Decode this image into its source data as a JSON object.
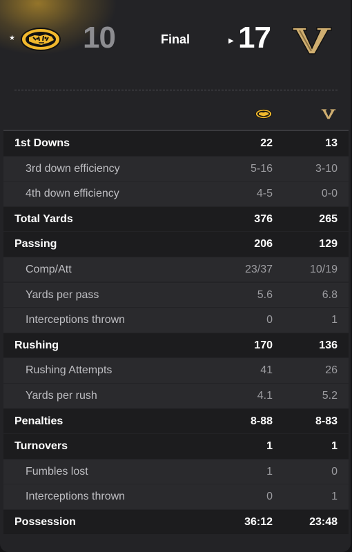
{
  "game": {
    "away_score": "10",
    "status": "Final",
    "home_score": "17",
    "colors": {
      "mizzou_gold": "#F1B82D",
      "vandy_gold": "#CFAE70",
      "background": "#232326"
    }
  },
  "stats": [
    {
      "label": "1st Downs",
      "away": "22",
      "home": "13",
      "type": "main"
    },
    {
      "label": "3rd down efficiency",
      "away": "5-16",
      "home": "3-10",
      "type": "sub"
    },
    {
      "label": "4th down efficiency",
      "away": "4-5",
      "home": "0-0",
      "type": "sub"
    },
    {
      "label": "Total Yards",
      "away": "376",
      "home": "265",
      "type": "main"
    },
    {
      "label": "Passing",
      "away": "206",
      "home": "129",
      "type": "main"
    },
    {
      "label": "Comp/Att",
      "away": "23/37",
      "home": "10/19",
      "type": "sub"
    },
    {
      "label": "Yards per pass",
      "away": "5.6",
      "home": "6.8",
      "type": "sub"
    },
    {
      "label": "Interceptions thrown",
      "away": "0",
      "home": "1",
      "type": "sub"
    },
    {
      "label": "Rushing",
      "away": "170",
      "home": "136",
      "type": "main"
    },
    {
      "label": "Rushing Attempts",
      "away": "41",
      "home": "26",
      "type": "sub"
    },
    {
      "label": "Yards per rush",
      "away": "4.1",
      "home": "5.2",
      "type": "sub"
    },
    {
      "label": "Penalties",
      "away": "8-88",
      "home": "8-83",
      "type": "main"
    },
    {
      "label": "Turnovers",
      "away": "1",
      "home": "1",
      "type": "main"
    },
    {
      "label": "Fumbles lost",
      "away": "1",
      "home": "0",
      "type": "sub"
    },
    {
      "label": "Interceptions thrown",
      "away": "0",
      "home": "1",
      "type": "sub"
    },
    {
      "label": "Possession",
      "away": "36:12",
      "home": "23:48",
      "type": "main"
    }
  ]
}
